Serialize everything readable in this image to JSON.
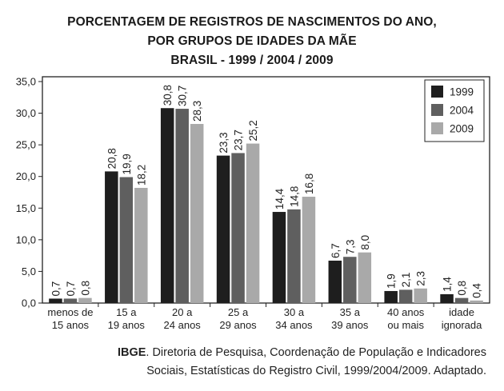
{
  "title_lines": [
    "PORCENTAGEM DE REGISTROS DE NASCIMENTOS DO ANO,",
    "POR GRUPOS DE IDADES DA MÃE",
    "BRASIL - 1999 / 2004 / 2009"
  ],
  "source": {
    "org": "IBGE",
    "line1_rest": ". Diretoria de Pesquisa, Coordenação de População e Indicadores",
    "line2": "Sociais, Estatísticas do Registro Civil, 1999/2004/2009. Adaptado."
  },
  "colors": {
    "1999": "#1e1e1e",
    "2004": "#5f5f5f",
    "2009": "#a9a9a9"
  },
  "chart_data": {
    "type": "bar",
    "title": "PORCENTAGEM DE REGISTROS DE NASCIMENTOS DO ANO, POR GRUPOS DE IDADES DA MÃE BRASIL - 1999 / 2004 / 2009",
    "categories": [
      [
        "menos de",
        "15 anos"
      ],
      [
        "15 a",
        "19 anos"
      ],
      [
        "20 a",
        "24 anos"
      ],
      [
        "25 a",
        "29 anos"
      ],
      [
        "30 a",
        "34 anos"
      ],
      [
        "35 a",
        "39 anos"
      ],
      [
        "40 anos",
        "ou mais"
      ],
      [
        "idade",
        "ignorada"
      ]
    ],
    "series": [
      {
        "name": "1999",
        "values": [
          0.7,
          20.8,
          30.8,
          23.3,
          14.4,
          6.7,
          1.9,
          1.4
        ],
        "labels": [
          "0,7",
          "20,8",
          "30,8",
          "23,3",
          "14,4",
          "6,7",
          "1,9",
          "1,4"
        ]
      },
      {
        "name": "2004",
        "values": [
          0.7,
          19.9,
          30.7,
          23.7,
          14.8,
          7.3,
          2.1,
          0.8
        ],
        "labels": [
          "0,7",
          "19,9",
          "30,7",
          "23,7",
          "14,8",
          "7,3",
          "2,1",
          "0,8"
        ]
      },
      {
        "name": "2009",
        "values": [
          0.8,
          18.2,
          28.3,
          25.2,
          16.8,
          8.0,
          2.3,
          0.4
        ],
        "labels": [
          "0,8",
          "18,2",
          "28,3",
          "25,2",
          "16,8",
          "8,0",
          "2,3",
          "0,4"
        ]
      }
    ],
    "ylim": [
      0,
      35
    ],
    "yticks": [
      0,
      5,
      10,
      15,
      20,
      25,
      30,
      35
    ],
    "ytick_labels": [
      "0,0",
      "5,0",
      "10,0",
      "15,0",
      "20,0",
      "25,0",
      "30,0",
      "35,0"
    ],
    "legend_position": "top-right",
    "grid": false
  }
}
